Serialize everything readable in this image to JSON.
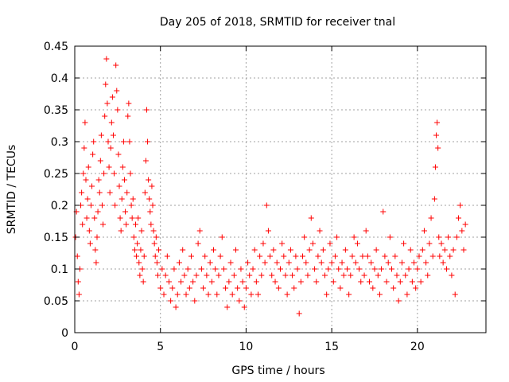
{
  "chart_data": {
    "type": "scatter",
    "title": "Day 205 of 2018, SRMTID for receiver tnal",
    "xlabel": "GPS time / hours",
    "ylabel": "SRMTID / TECUs",
    "xlim": [
      0,
      24
    ],
    "ylim": [
      0,
      0.45
    ],
    "xticks": [
      0,
      5,
      10,
      15,
      20
    ],
    "xtick_labels": [
      "0",
      "5",
      "10",
      "15",
      "20"
    ],
    "yticks": [
      0,
      0.05,
      0.1,
      0.15,
      0.2,
      0.25,
      0.3,
      0.35,
      0.4,
      0.45
    ],
    "ytick_labels": [
      "0",
      "0.05",
      "0.1",
      "0.15",
      "0.2",
      "0.25",
      "0.3",
      "0.35",
      "0.4",
      "0.45"
    ],
    "grid": true,
    "marker": "+",
    "color": "#ff0000",
    "series": [
      {
        "name": "SRMTID",
        "points": [
          [
            0.05,
            0.15
          ],
          [
            0.1,
            0.19
          ],
          [
            0.15,
            0.12
          ],
          [
            0.2,
            0.08
          ],
          [
            0.25,
            0.06
          ],
          [
            0.3,
            0.1
          ],
          [
            0.35,
            0.2
          ],
          [
            0.4,
            0.22
          ],
          [
            0.45,
            0.17
          ],
          [
            0.5,
            0.25
          ],
          [
            0.55,
            0.29
          ],
          [
            0.6,
            0.33
          ],
          [
            0.65,
            0.24
          ],
          [
            0.7,
            0.18
          ],
          [
            0.75,
            0.21
          ],
          [
            0.8,
            0.26
          ],
          [
            0.85,
            0.16
          ],
          [
            0.9,
            0.14
          ],
          [
            0.95,
            0.2
          ],
          [
            1.0,
            0.23
          ],
          [
            1.05,
            0.28
          ],
          [
            1.1,
            0.3
          ],
          [
            1.15,
            0.18
          ],
          [
            1.2,
            0.13
          ],
          [
            1.25,
            0.11
          ],
          [
            1.3,
            0.15
          ],
          [
            1.35,
            0.19
          ],
          [
            1.4,
            0.24
          ],
          [
            1.45,
            0.22
          ],
          [
            1.5,
            0.27
          ],
          [
            1.55,
            0.31
          ],
          [
            1.6,
            0.2
          ],
          [
            1.65,
            0.17
          ],
          [
            1.7,
            0.25
          ],
          [
            1.75,
            0.34
          ],
          [
            1.8,
            0.39
          ],
          [
            1.85,
            0.43
          ],
          [
            1.9,
            0.36
          ],
          [
            1.95,
            0.3
          ],
          [
            2.0,
            0.26
          ],
          [
            2.05,
            0.22
          ],
          [
            2.1,
            0.29
          ],
          [
            2.15,
            0.33
          ],
          [
            2.2,
            0.37
          ],
          [
            2.25,
            0.31
          ],
          [
            2.3,
            0.25
          ],
          [
            2.35,
            0.2
          ],
          [
            2.4,
            0.42
          ],
          [
            2.45,
            0.38
          ],
          [
            2.5,
            0.35
          ],
          [
            2.55,
            0.28
          ],
          [
            2.6,
            0.23
          ],
          [
            2.65,
            0.18
          ],
          [
            2.7,
            0.16
          ],
          [
            2.75,
            0.21
          ],
          [
            2.8,
            0.26
          ],
          [
            2.85,
            0.3
          ],
          [
            2.9,
            0.24
          ],
          [
            2.95,
            0.19
          ],
          [
            3.0,
            0.17
          ],
          [
            3.05,
            0.22
          ],
          [
            3.1,
            0.34
          ],
          [
            3.15,
            0.36
          ],
          [
            3.2,
            0.3
          ],
          [
            3.25,
            0.25
          ],
          [
            3.3,
            0.2
          ],
          [
            3.35,
            0.18
          ],
          [
            3.4,
            0.21
          ],
          [
            3.45,
            0.15
          ],
          [
            3.5,
            0.13
          ],
          [
            3.55,
            0.17
          ],
          [
            3.6,
            0.12
          ],
          [
            3.65,
            0.14
          ],
          [
            3.7,
            0.18
          ],
          [
            3.75,
            0.11
          ],
          [
            3.8,
            0.09
          ],
          [
            3.85,
            0.13
          ],
          [
            3.9,
            0.16
          ],
          [
            3.95,
            0.1
          ],
          [
            4.0,
            0.08
          ],
          [
            4.05,
            0.12
          ],
          [
            4.1,
            0.22
          ],
          [
            4.15,
            0.27
          ],
          [
            4.2,
            0.35
          ],
          [
            4.25,
            0.3
          ],
          [
            4.3,
            0.24
          ],
          [
            4.35,
            0.21
          ],
          [
            4.4,
            0.19
          ],
          [
            4.45,
            0.17
          ],
          [
            4.5,
            0.23
          ],
          [
            4.55,
            0.2
          ],
          [
            4.6,
            0.16
          ],
          [
            4.65,
            0.14
          ],
          [
            4.7,
            0.12
          ],
          [
            4.75,
            0.15
          ],
          [
            4.8,
            0.11
          ],
          [
            4.85,
            0.09
          ],
          [
            4.9,
            0.13
          ],
          [
            5.0,
            0.07
          ],
          [
            5.1,
            0.1
          ],
          [
            5.2,
            0.06
          ],
          [
            5.3,
            0.09
          ],
          [
            5.4,
            0.12
          ],
          [
            5.5,
            0.08
          ],
          [
            5.6,
            0.05
          ],
          [
            5.7,
            0.07
          ],
          [
            5.8,
            0.1
          ],
          [
            5.9,
            0.04
          ],
          [
            6.0,
            0.06
          ],
          [
            6.1,
            0.11
          ],
          [
            6.2,
            0.08
          ],
          [
            6.3,
            0.13
          ],
          [
            6.4,
            0.09
          ],
          [
            6.5,
            0.06
          ],
          [
            6.6,
            0.1
          ],
          [
            6.7,
            0.07
          ],
          [
            6.8,
            0.12
          ],
          [
            6.9,
            0.08
          ],
          [
            7.0,
            0.05
          ],
          [
            7.1,
            0.09
          ],
          [
            7.2,
            0.14
          ],
          [
            7.3,
            0.16
          ],
          [
            7.4,
            0.1
          ],
          [
            7.5,
            0.07
          ],
          [
            7.6,
            0.12
          ],
          [
            7.7,
            0.09
          ],
          [
            7.8,
            0.06
          ],
          [
            7.9,
            0.11
          ],
          [
            8.0,
            0.08
          ],
          [
            8.1,
            0.13
          ],
          [
            8.2,
            0.1
          ],
          [
            8.3,
            0.06
          ],
          [
            8.4,
            0.09
          ],
          [
            8.5,
            0.12
          ],
          [
            8.6,
            0.15
          ],
          [
            8.7,
            0.1
          ],
          [
            8.8,
            0.07
          ],
          [
            8.9,
            0.04
          ],
          [
            9.0,
            0.08
          ],
          [
            9.1,
            0.11
          ],
          [
            9.2,
            0.06
          ],
          [
            9.3,
            0.09
          ],
          [
            9.4,
            0.13
          ],
          [
            9.5,
            0.07
          ],
          [
            9.6,
            0.05
          ],
          [
            9.7,
            0.1
          ],
          [
            9.8,
            0.08
          ],
          [
            9.9,
            0.04
          ],
          [
            10.0,
            0.07
          ],
          [
            10.1,
            0.11
          ],
          [
            10.2,
            0.09
          ],
          [
            10.3,
            0.06
          ],
          [
            10.4,
            0.1
          ],
          [
            10.5,
            0.13
          ],
          [
            10.6,
            0.08
          ],
          [
            10.7,
            0.06
          ],
          [
            10.8,
            0.12
          ],
          [
            10.9,
            0.09
          ],
          [
            11.0,
            0.14
          ],
          [
            11.1,
            0.11
          ],
          [
            11.2,
            0.2
          ],
          [
            11.3,
            0.16
          ],
          [
            11.4,
            0.12
          ],
          [
            11.5,
            0.09
          ],
          [
            11.6,
            0.13
          ],
          [
            11.7,
            0.08
          ],
          [
            11.8,
            0.11
          ],
          [
            11.9,
            0.07
          ],
          [
            12.0,
            0.1
          ],
          [
            12.1,
            0.14
          ],
          [
            12.2,
            0.12
          ],
          [
            12.3,
            0.09
          ],
          [
            12.4,
            0.06
          ],
          [
            12.5,
            0.11
          ],
          [
            12.6,
            0.13
          ],
          [
            12.7,
            0.09
          ],
          [
            12.8,
            0.07
          ],
          [
            12.9,
            0.12
          ],
          [
            13.0,
            0.1
          ],
          [
            13.1,
            0.03
          ],
          [
            13.2,
            0.08
          ],
          [
            13.3,
            0.12
          ],
          [
            13.4,
            0.15
          ],
          [
            13.5,
            0.11
          ],
          [
            13.6,
            0.09
          ],
          [
            13.7,
            0.13
          ],
          [
            13.8,
            0.18
          ],
          [
            13.9,
            0.14
          ],
          [
            14.0,
            0.1
          ],
          [
            14.1,
            0.08
          ],
          [
            14.2,
            0.12
          ],
          [
            14.3,
            0.16
          ],
          [
            14.4,
            0.11
          ],
          [
            14.5,
            0.13
          ],
          [
            14.6,
            0.09
          ],
          [
            14.7,
            0.06
          ],
          [
            14.8,
            0.1
          ],
          [
            14.9,
            0.14
          ],
          [
            15.0,
            0.11
          ],
          [
            15.1,
            0.08
          ],
          [
            15.2,
            0.12
          ],
          [
            15.3,
            0.15
          ],
          [
            15.4,
            0.1
          ],
          [
            15.5,
            0.07
          ],
          [
            15.6,
            0.11
          ],
          [
            15.7,
            0.09
          ],
          [
            15.8,
            0.13
          ],
          [
            15.9,
            0.1
          ],
          [
            16.0,
            0.06
          ],
          [
            16.1,
            0.09
          ],
          [
            16.2,
            0.12
          ],
          [
            16.3,
            0.15
          ],
          [
            16.4,
            0.11
          ],
          [
            16.5,
            0.14
          ],
          [
            16.6,
            0.1
          ],
          [
            16.7,
            0.08
          ],
          [
            16.8,
            0.12
          ],
          [
            16.9,
            0.09
          ],
          [
            17.0,
            0.16
          ],
          [
            17.1,
            0.12
          ],
          [
            17.2,
            0.08
          ],
          [
            17.3,
            0.11
          ],
          [
            17.4,
            0.07
          ],
          [
            17.5,
            0.1
          ],
          [
            17.6,
            0.13
          ],
          [
            17.7,
            0.09
          ],
          [
            17.8,
            0.06
          ],
          [
            17.9,
            0.1
          ],
          [
            18.0,
            0.19
          ],
          [
            18.1,
            0.12
          ],
          [
            18.2,
            0.08
          ],
          [
            18.3,
            0.11
          ],
          [
            18.4,
            0.15
          ],
          [
            18.5,
            0.1
          ],
          [
            18.6,
            0.07
          ],
          [
            18.7,
            0.12
          ],
          [
            18.8,
            0.09
          ],
          [
            18.9,
            0.05
          ],
          [
            19.0,
            0.08
          ],
          [
            19.1,
            0.11
          ],
          [
            19.2,
            0.14
          ],
          [
            19.3,
            0.09
          ],
          [
            19.4,
            0.06
          ],
          [
            19.5,
            0.1
          ],
          [
            19.6,
            0.13
          ],
          [
            19.7,
            0.08
          ],
          [
            19.8,
            0.11
          ],
          [
            19.9,
            0.07
          ],
          [
            20.0,
            0.1
          ],
          [
            20.1,
            0.12
          ],
          [
            20.2,
            0.08
          ],
          [
            20.3,
            0.13
          ],
          [
            20.4,
            0.16
          ],
          [
            20.5,
            0.11
          ],
          [
            20.6,
            0.09
          ],
          [
            20.7,
            0.14
          ],
          [
            20.8,
            0.18
          ],
          [
            20.9,
            0.12
          ],
          [
            21.0,
            0.21
          ],
          [
            21.05,
            0.26
          ],
          [
            21.1,
            0.31
          ],
          [
            21.15,
            0.33
          ],
          [
            21.2,
            0.29
          ],
          [
            21.25,
            0.15
          ],
          [
            21.3,
            0.12
          ],
          [
            21.4,
            0.14
          ],
          [
            21.5,
            0.11
          ],
          [
            21.6,
            0.13
          ],
          [
            21.7,
            0.1
          ],
          [
            21.8,
            0.15
          ],
          [
            21.9,
            0.12
          ],
          [
            22.0,
            0.09
          ],
          [
            22.1,
            0.13
          ],
          [
            22.2,
            0.06
          ],
          [
            22.3,
            0.15
          ],
          [
            22.4,
            0.18
          ],
          [
            22.5,
            0.2
          ],
          [
            22.6,
            0.16
          ],
          [
            22.7,
            0.13
          ],
          [
            22.8,
            0.17
          ]
        ]
      }
    ]
  }
}
